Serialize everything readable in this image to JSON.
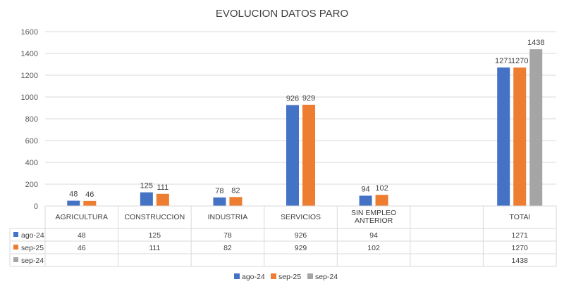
{
  "chart_data": {
    "type": "bar",
    "title": "EVOLUCION DATOS PARO",
    "categories": [
      "AGRICULTURA",
      "CONSTRUCCION",
      "INDUSTRIA",
      "SERVICIOS",
      "SIN EMPLEO ANTERIOR",
      "",
      "TOTAl"
    ],
    "series": [
      {
        "name": "ago-24",
        "color": "#4472c4",
        "values": [
          48,
          125,
          78,
          926,
          94,
          null,
          1271
        ]
      },
      {
        "name": "sep-25",
        "color": "#ed7d31",
        "values": [
          46,
          111,
          82,
          929,
          102,
          null,
          1270
        ]
      },
      {
        "name": "sep-24",
        "color": "#a5a5a5",
        "values": [
          null,
          null,
          null,
          null,
          null,
          null,
          1438
        ]
      }
    ],
    "ylim": [
      0,
      1600
    ],
    "yticks": [
      0,
      200,
      400,
      600,
      800,
      1000,
      1200,
      1400,
      1600
    ],
    "grid": true,
    "legend_position": "bottom",
    "data_table": true
  }
}
